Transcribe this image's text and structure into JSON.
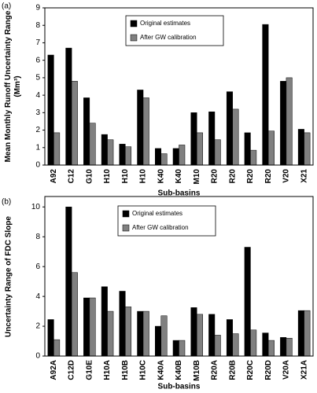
{
  "chart_data": [
    {
      "type": "bar",
      "panel_label": "(a)",
      "y_label": "Mean Monthly Runoff Uncertainty Range (Mm³)",
      "x_label": "Sub-basins",
      "categories": [
        "A92",
        "C12",
        "G10",
        "H10",
        "H10",
        "H10",
        "K40",
        "K40",
        "M10",
        "R20",
        "R20",
        "R20",
        "R20",
        "V20",
        "X21"
      ],
      "series": [
        {
          "name": "Original estimates",
          "color": "#000000",
          "values": [
            6.3,
            6.7,
            3.85,
            1.75,
            1.2,
            4.3,
            0.95,
            0.95,
            3.0,
            3.05,
            4.2,
            1.85,
            8.05,
            4.8,
            2.05
          ]
        },
        {
          "name": "After GW calibration",
          "color": "#808080",
          "values": [
            1.85,
            4.8,
            2.4,
            1.45,
            1.05,
            3.85,
            0.65,
            1.15,
            1.85,
            1.45,
            3.2,
            0.85,
            1.95,
            5.0,
            1.85
          ]
        }
      ],
      "ylim": [
        0,
        9
      ],
      "yticks": [
        0,
        1,
        2,
        3,
        4,
        5,
        6,
        7,
        8,
        9
      ],
      "grid": false
    },
    {
      "type": "bar",
      "panel_label": "(b)",
      "y_label": "Uncertainty Range of FDC Slope",
      "x_label": "Sub-basins",
      "categories": [
        "A92A",
        "C12D",
        "G10E",
        "H10A",
        "H10B",
        "H10C",
        "K40A",
        "K40B",
        "M10B",
        "R20A",
        "R20B",
        "R20C",
        "R20D",
        "V20A",
        "X21A"
      ],
      "series": [
        {
          "name": "Original estimates",
          "color": "#000000",
          "values": [
            2.45,
            10.0,
            3.9,
            4.65,
            4.35,
            3.0,
            2.0,
            1.05,
            3.25,
            2.8,
            2.45,
            7.3,
            1.55,
            1.25,
            3.05
          ]
        },
        {
          "name": "After GW calibration",
          "color": "#808080",
          "values": [
            1.1,
            5.6,
            3.9,
            3.0,
            3.3,
            3.0,
            2.7,
            1.05,
            2.8,
            1.4,
            1.5,
            1.75,
            1.05,
            1.2,
            3.05
          ]
        }
      ],
      "ylim": [
        0,
        10.7
      ],
      "yticks": [
        0,
        2,
        4,
        6,
        8,
        10
      ],
      "grid": false
    }
  ]
}
